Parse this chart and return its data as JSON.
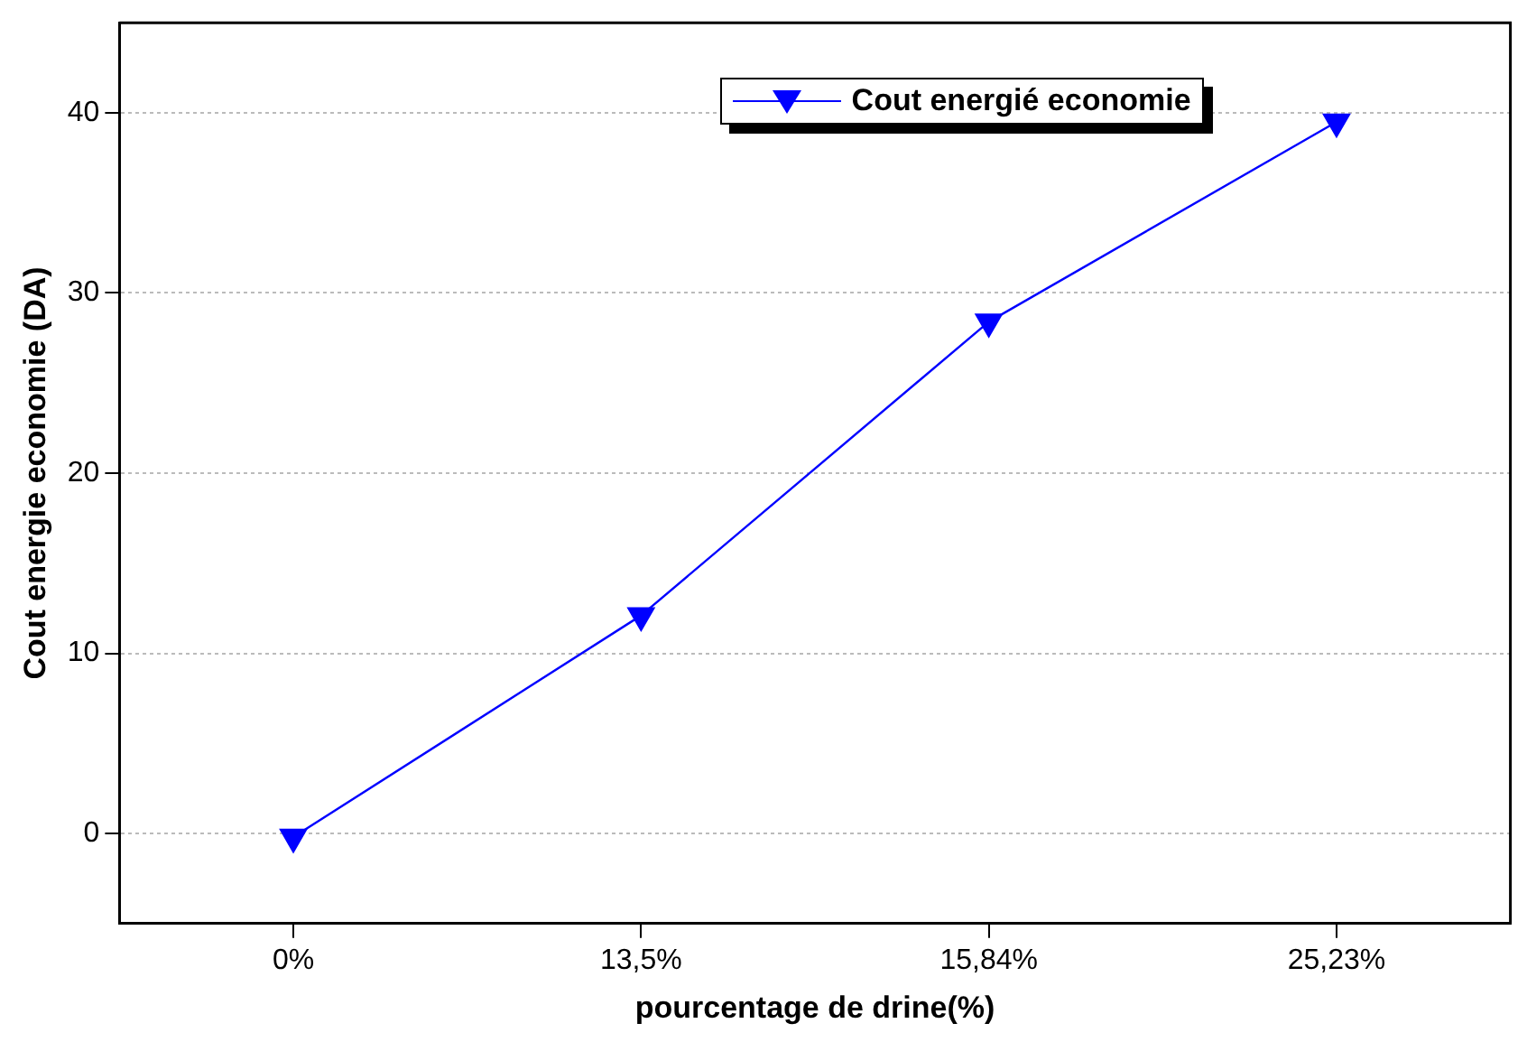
{
  "chart_data": {
    "type": "line",
    "xlabel": "pourcentage de drine(%)",
    "ylabel": "Cout energie economie (DA)",
    "categories": [
      "0%",
      "13,5%",
      "15,84%",
      "25,23%"
    ],
    "series": [
      {
        "name": "Cout energié economie",
        "color": "#0000ff",
        "values": [
          -0.2,
          12.1,
          28.4,
          39.5
        ]
      }
    ],
    "ylim": [
      -5,
      45
    ],
    "yticks": [
      0,
      10,
      20,
      30,
      40
    ],
    "grid": "y",
    "legend": "top right",
    "marker": "triangle",
    "line_style": "solid"
  }
}
